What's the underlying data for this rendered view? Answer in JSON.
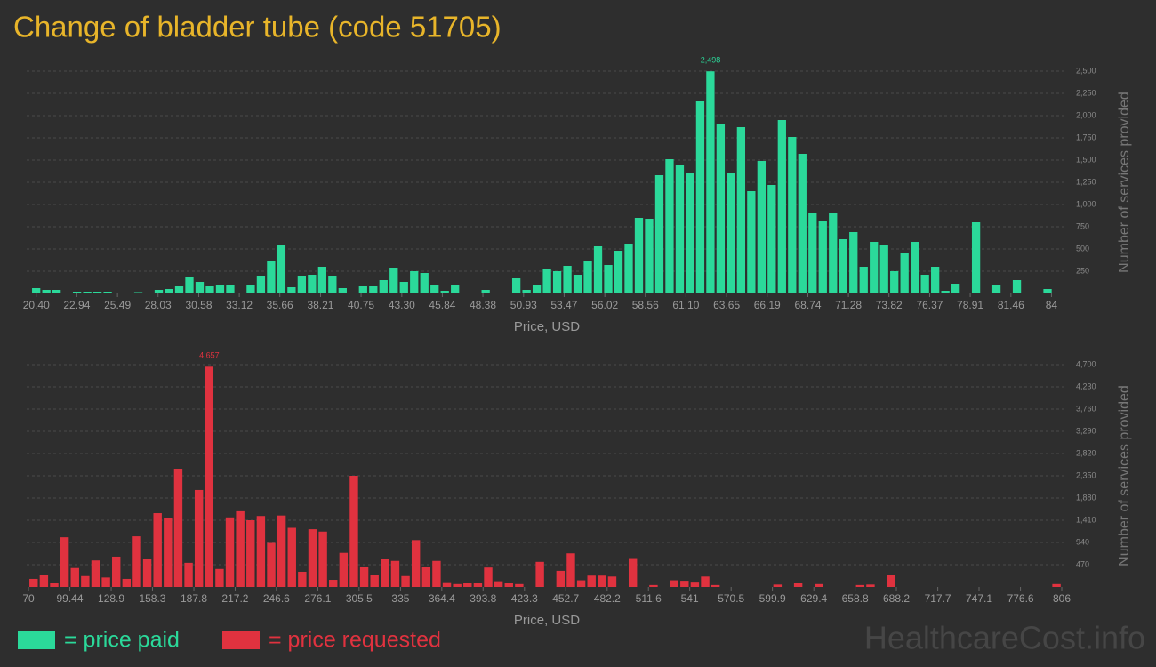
{
  "title": "Change of bladder tube (code 51705)",
  "watermark": "HealthcareCost.info",
  "chart_data": [
    {
      "type": "histogram",
      "x_label": "Price, USD",
      "y_label": "Number of services provided",
      "grid": true,
      "xlim": [
        19.8,
        84.7
      ],
      "ylim": [
        0,
        2500
      ],
      "xticks": [
        {
          "value": 20.4,
          "label": "20.40"
        },
        22.94,
        25.49,
        28.03,
        30.58,
        33.12,
        35.66,
        38.21,
        40.75,
        {
          "value": 43.3,
          "label": "43.30"
        },
        45.84,
        48.38,
        50.93,
        53.47,
        56.02,
        58.56,
        {
          "value": 61.1,
          "label": "61.10"
        },
        63.65,
        66.19,
        68.74,
        71.28,
        73.82,
        76.37,
        78.91,
        81.46,
        84
      ],
      "yticks": [
        250,
        500,
        750,
        {
          "value": 1000,
          "label": "1,000"
        },
        {
          "value": 1250,
          "label": "1,250"
        },
        {
          "value": 1500,
          "label": "1,500"
        },
        {
          "value": 1750,
          "label": "1,750"
        },
        {
          "value": 2000,
          "label": "2,000"
        },
        {
          "value": 2250,
          "label": "2,250"
        },
        {
          "value": 2500,
          "label": "2,500"
        }
      ],
      "bins": [
        20.08,
        20.72,
        21.36,
        22.0,
        22.64,
        23.28,
        23.92,
        24.56,
        25.2,
        25.84,
        26.48,
        27.12,
        27.76,
        28.4,
        29.04,
        29.68,
        30.32,
        30.96,
        31.6,
        32.24,
        32.88,
        33.52,
        34.16,
        34.8,
        35.44,
        36.08,
        36.72,
        37.36,
        38.0,
        38.64,
        39.28,
        39.92,
        40.56,
        41.2,
        41.84,
        42.48,
        43.12,
        43.76,
        44.4,
        45.04,
        45.68,
        46.32,
        46.96,
        47.6,
        48.24,
        48.88,
        49.52,
        50.16,
        50.8,
        51.44,
        52.08,
        52.72,
        53.36,
        54.0,
        54.64,
        55.28,
        55.92,
        56.56,
        57.2,
        57.84,
        58.48,
        59.12,
        59.76,
        60.4,
        61.04,
        61.68,
        62.32,
        62.96,
        63.6,
        64.24,
        64.88,
        65.52,
        66.16,
        66.8,
        67.44,
        68.08,
        68.72,
        69.36,
        70.0,
        70.64,
        71.28,
        71.92,
        72.56,
        73.2,
        73.84,
        74.48,
        75.12,
        75.76,
        76.4,
        77.04,
        77.68,
        78.32,
        78.96,
        79.6,
        80.24,
        80.88,
        81.52,
        82.16,
        82.8,
        83.44,
        84.08
      ],
      "series": [
        {
          "name": "= price paid",
          "color": "#2bd99a",
          "values": [
            60,
            40,
            40,
            0,
            20,
            20,
            20,
            20,
            0,
            0,
            15,
            0,
            40,
            50,
            80,
            180,
            130,
            80,
            90,
            100,
            0,
            100,
            200,
            370,
            540,
            70,
            200,
            210,
            300,
            200,
            60,
            0,
            80,
            80,
            150,
            290,
            130,
            250,
            230,
            90,
            30,
            90,
            0,
            0,
            40,
            0,
            0,
            170,
            40,
            100,
            270,
            250,
            310,
            210,
            370,
            530,
            320,
            480,
            560,
            850,
            840,
            1330,
            1510,
            1450,
            1350,
            2160,
            2498,
            1910,
            1350,
            1870,
            1150,
            1490,
            1220,
            1950,
            1760,
            1570,
            900,
            820,
            910,
            610,
            690,
            300,
            580,
            550,
            250,
            450,
            580,
            210,
            300,
            30,
            110,
            0,
            800,
            0,
            90,
            0,
            150,
            0,
            0,
            50
          ],
          "value_labels": [
            null,
            null,
            null,
            null,
            null,
            null,
            null,
            null,
            null,
            null,
            null,
            null,
            null,
            null,
            null,
            null,
            null,
            null,
            null,
            null,
            null,
            null,
            null,
            null,
            null,
            null,
            null,
            null,
            null,
            null,
            null,
            null,
            null,
            null,
            null,
            null,
            null,
            null,
            null,
            null,
            null,
            null,
            null,
            null,
            null,
            null,
            null,
            null,
            null,
            null,
            null,
            null,
            null,
            null,
            null,
            null,
            null,
            null,
            null,
            null,
            null,
            null,
            null,
            null,
            null,
            null,
            "2,498",
            null,
            null,
            null,
            null,
            null,
            null,
            null,
            null,
            null,
            null,
            null,
            null,
            null,
            null,
            null,
            null,
            null,
            null,
            null,
            null,
            null,
            null,
            null,
            null,
            null,
            null,
            null,
            null,
            null,
            null,
            null,
            null,
            null
          ]
        }
      ]
    },
    {
      "type": "histogram",
      "x_label": "Price, USD",
      "y_label": "Number of services provided",
      "grid": true,
      "xlim": [
        68.7,
        809.8
      ],
      "ylim": [
        0,
        4700
      ],
      "xticks": [
        70,
        99.44,
        128.9,
        158.3,
        187.8,
        217.2,
        246.6,
        276.1,
        305.5,
        335,
        364.4,
        393.8,
        423.3,
        452.7,
        482.2,
        511.6,
        541,
        570.5,
        599.9,
        629.4,
        658.8,
        688.2,
        717.7,
        747.1,
        776.6,
        806
      ],
      "yticks": [
        470,
        940,
        {
          "value": 1410,
          "label": "1,410"
        },
        {
          "value": 1880,
          "label": "1,880"
        },
        {
          "value": 2350,
          "label": "2,350"
        },
        {
          "value": 2820,
          "label": "2,820"
        },
        {
          "value": 3290,
          "label": "3,290"
        },
        {
          "value": 3760,
          "label": "3,760"
        },
        {
          "value": 4230,
          "label": "4,230"
        },
        {
          "value": 4700,
          "label": "4,700"
        }
      ],
      "bins": [
        70,
        77.36,
        84.72,
        92.08,
        99.44,
        106.8,
        114.16,
        121.52,
        128.88,
        136.24,
        143.6,
        150.96,
        158.32,
        165.68,
        173.04,
        180.4,
        187.76,
        195.12,
        202.48,
        209.84,
        217.2,
        224.56,
        231.92,
        239.28,
        246.64,
        254,
        261.36,
        268.72,
        276.08,
        283.44,
        290.8,
        298.16,
        305.52,
        312.88,
        320.24,
        327.6,
        334.96,
        342.32,
        349.68,
        357.04,
        364.4,
        371.76,
        379.12,
        386.48,
        393.84,
        401.2,
        408.56,
        415.92,
        423.28,
        430.64,
        438,
        445.36,
        452.72,
        460.08,
        467.44,
        474.8,
        482.16,
        489.52,
        496.88,
        504.24,
        511.6,
        518.96,
        526.32,
        533.68,
        541.04,
        548.4,
        555.76,
        563.12,
        570.48,
        577.84,
        585.2,
        592.56,
        599.92,
        607.28,
        614.64,
        622,
        629.36,
        636.72,
        644.08,
        651.44,
        658.8,
        666.16,
        673.52,
        680.88,
        688.24,
        695.6,
        702.96,
        710.32,
        717.68,
        725.04,
        732.4,
        739.76,
        747.12,
        754.48,
        761.84,
        769.2,
        776.56,
        783.92,
        791.28,
        798.64,
        806
      ],
      "series": [
        {
          "name": "= price requested",
          "color": "#e0323f",
          "values": [
            170,
            260,
            90,
            1050,
            400,
            230,
            560,
            200,
            640,
            170,
            1070,
            590,
            1560,
            1460,
            2500,
            510,
            2050,
            4657,
            380,
            1470,
            1600,
            1410,
            1500,
            930,
            1510,
            1250,
            320,
            1220,
            1170,
            150,
            720,
            2350,
            420,
            250,
            590,
            550,
            230,
            990,
            420,
            550,
            100,
            60,
            90,
            90,
            410,
            120,
            90,
            60,
            0,
            530,
            0,
            340,
            710,
            140,
            240,
            240,
            220,
            0,
            610,
            0,
            40,
            0,
            140,
            130,
            110,
            220,
            40,
            0,
            0,
            0,
            0,
            0,
            50,
            0,
            80,
            0,
            60,
            0,
            0,
            0,
            40,
            50,
            0,
            250,
            0,
            0,
            0,
            0,
            0,
            0,
            0,
            0,
            0,
            0,
            0,
            0,
            0,
            0,
            0,
            60
          ],
          "value_labels": [
            null,
            null,
            null,
            null,
            null,
            null,
            null,
            null,
            null,
            null,
            null,
            null,
            null,
            null,
            null,
            null,
            null,
            "4,657",
            null,
            null,
            null,
            null,
            null,
            null,
            null,
            null,
            null,
            null,
            null,
            null,
            null,
            null,
            null,
            null,
            null,
            null,
            null,
            null,
            null,
            null,
            null,
            null,
            null,
            null,
            null,
            null,
            null,
            null,
            null,
            null,
            null,
            null,
            null,
            null,
            null,
            null,
            null,
            null,
            null,
            null,
            null,
            null,
            null,
            null,
            null,
            null,
            null,
            null,
            null,
            null,
            null,
            null,
            null,
            null,
            null,
            null,
            null,
            null,
            null,
            null,
            null,
            null,
            null,
            null,
            null,
            null,
            null,
            null,
            null,
            null,
            null,
            null,
            null,
            null,
            null,
            null,
            null,
            null,
            null,
            null
          ]
        }
      ]
    }
  ]
}
